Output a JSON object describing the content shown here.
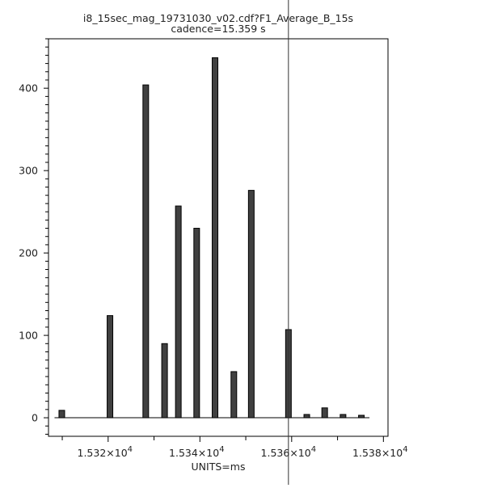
{
  "chart_data": {
    "type": "bar",
    "title": "i8_15sec_mag_19731030_v02.cdf?F1_Average_B_15s",
    "subtitle": "cadence=15.359 s",
    "xlabel": "UNITS=ms",
    "ylabel": "",
    "xlim": [
      15307,
      15381
    ],
    "ylim": [
      -22.5,
      460
    ],
    "x_ticks": [
      {
        "value": 15320,
        "mantissa": "1.532",
        "exp": "4"
      },
      {
        "value": 15340,
        "mantissa": "1.534",
        "exp": "4"
      },
      {
        "value": 15360,
        "mantissa": "1.536",
        "exp": "4"
      },
      {
        "value": 15380,
        "mantissa": "1.538",
        "exp": "4"
      }
    ],
    "y_ticks": [
      0,
      100,
      200,
      300,
      400
    ],
    "grid": false,
    "bar_color": "#404040",
    "cursor_x": 15359.3,
    "x": [
      15309.9,
      15320.4,
      15328.2,
      15332.3,
      15335.3,
      15339.3,
      15343.3,
      15347.4,
      15351.2,
      15359.3,
      15363.3,
      15367.2,
      15371.2,
      15375.2
    ],
    "values": [
      9,
      124,
      404,
      90,
      257,
      230,
      437,
      56,
      276,
      107,
      4,
      12,
      4,
      3
    ]
  }
}
